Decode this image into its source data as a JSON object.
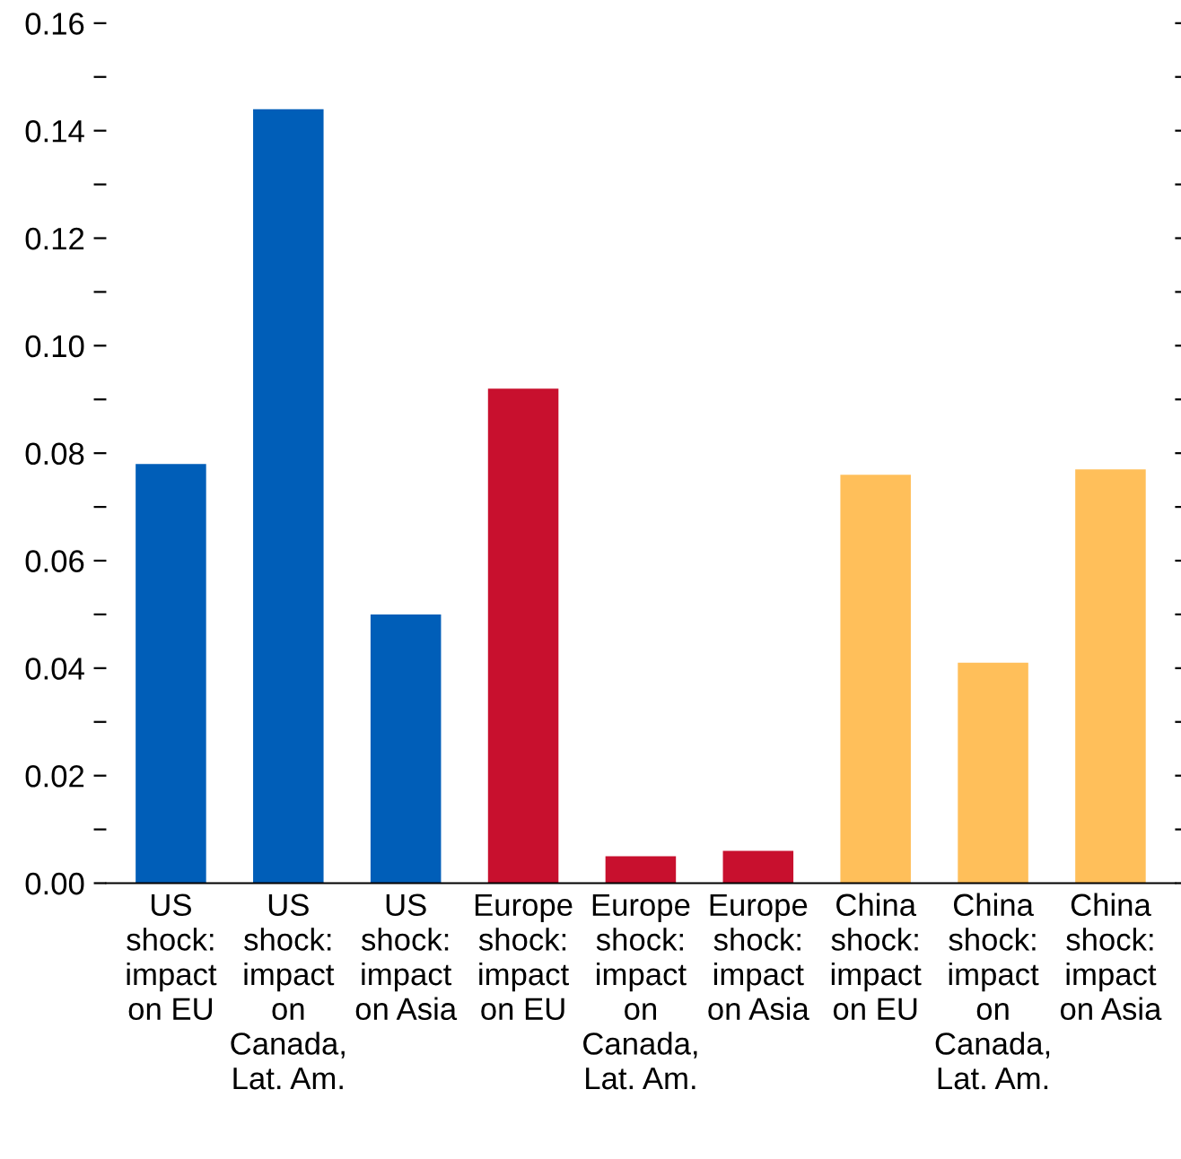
{
  "chart_data": {
    "type": "bar",
    "categories": [
      "US\nshock:\nimpact\non EU",
      "US\nshock:\nimpact\non\nCanada,\nLat. Am.",
      "US\nshock:\nimpact\non Asia",
      "Europe\nshock:\nimpact\non EU",
      "Europe\nshock:\nimpact\non\nCanada,\nLat. Am.",
      "Europe\nshock:\nimpact\non Asia",
      "China\nshock:\nimpact\non EU",
      "China\nshock:\nimpact\non\nCanada,\nLat. Am.",
      "China\nshock:\nimpact\non Asia"
    ],
    "values": [
      0.078,
      0.144,
      0.05,
      0.092,
      0.005,
      0.006,
      0.076,
      0.041,
      0.077
    ],
    "colors": [
      "#005eb8",
      "#005eb8",
      "#005eb8",
      "#c8102e",
      "#c8102e",
      "#c8102e",
      "#ffbf5a",
      "#ffbf5a",
      "#ffbf5a"
    ],
    "ylim": [
      0,
      0.16
    ],
    "yticks": [
      {
        "value": 0,
        "label": "0.00"
      },
      {
        "value": 0.01,
        "label": null
      },
      {
        "value": 0.02,
        "label": "0.02"
      },
      {
        "value": 0.03,
        "label": null
      },
      {
        "value": 0.04,
        "label": "0.04"
      },
      {
        "value": 0.05,
        "label": null
      },
      {
        "value": 0.06,
        "label": "0.06"
      },
      {
        "value": 0.07,
        "label": null
      },
      {
        "value": 0.08,
        "label": "0.08"
      },
      {
        "value": 0.09,
        "label": null
      },
      {
        "value": 0.1,
        "label": "0.10"
      },
      {
        "value": 0.11,
        "label": null
      },
      {
        "value": 0.12,
        "label": "0.12"
      },
      {
        "value": 0.13,
        "label": null
      },
      {
        "value": 0.14,
        "label": "0.14"
      },
      {
        "value": 0.15,
        "label": null
      },
      {
        "value": 0.16,
        "label": "0.16"
      }
    ],
    "grid": false
  }
}
